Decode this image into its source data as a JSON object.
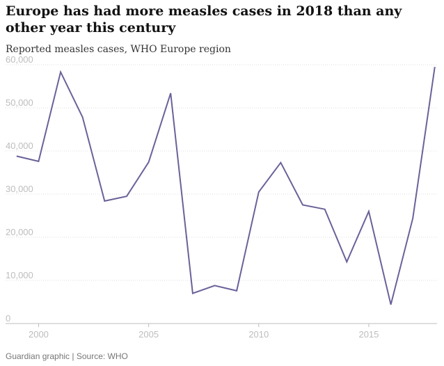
{
  "title": "Europe has had more measles cases in 2018 than any other year this century",
  "subtitle": "Reported measles cases, WHO Europe region",
  "footer": "Guardian graphic | Source: WHO",
  "chart_data": {
    "type": "line",
    "series": [
      {
        "x": [
          1999,
          2000,
          2001,
          2002,
          2003,
          2004,
          2005,
          2006,
          2007,
          2008,
          2009,
          2010,
          2011,
          2012,
          2013,
          2014,
          2015,
          2016,
          2017,
          2018
        ],
        "values": [
          38800,
          37600,
          58300,
          47800,
          28400,
          29500,
          37400,
          53400,
          7000,
          8800,
          7600,
          30500,
          37300,
          27500,
          26500,
          14300,
          26000,
          4400,
          24400,
          59500
        ],
        "color": "#6b6199"
      }
    ],
    "xlim": [
      1998.5,
      2018.1
    ],
    "ylim": [
      0,
      60000
    ],
    "yticks": [
      0,
      10000,
      20000,
      30000,
      40000,
      50000,
      60000
    ],
    "ytick_labels": [
      "0",
      "10,000",
      "20,000",
      "30,000",
      "40,000",
      "50,000",
      "60,000"
    ],
    "xticks": [
      2000,
      2005,
      2010,
      2015
    ],
    "xtick_labels": [
      "2000",
      "2005",
      "2010",
      "2015"
    ],
    "grid": true,
    "grid_color": "#dcdcdc",
    "axis_color": "#bdbdbd"
  }
}
